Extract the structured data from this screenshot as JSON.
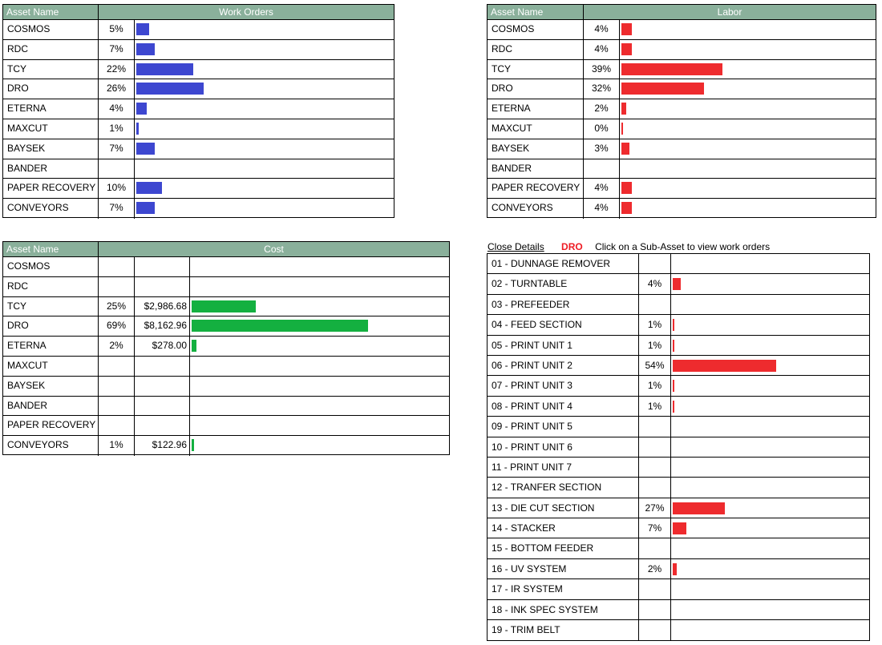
{
  "colors": {
    "header_bg": "#8ab09b",
    "work_orders_bar": "#3d47d0",
    "labor_bar": "#ee2b2e",
    "cost_bar": "#14b040",
    "asset_code": "#ee1c24"
  },
  "work_orders": {
    "header_name": "Asset Name",
    "header_metric": "Work Orders",
    "rows": [
      {
        "name": "COSMOS",
        "pct": "5%",
        "fraction": 0.05
      },
      {
        "name": "RDC",
        "pct": "7%",
        "fraction": 0.07
      },
      {
        "name": "TCY",
        "pct": "22%",
        "fraction": 0.22
      },
      {
        "name": "DRO",
        "pct": "26%",
        "fraction": 0.26
      },
      {
        "name": "ETERNA",
        "pct": "4%",
        "fraction": 0.04
      },
      {
        "name": "MAXCUT",
        "pct": "1%",
        "fraction": 0.01
      },
      {
        "name": "BAYSEK",
        "pct": "7%",
        "fraction": 0.07
      },
      {
        "name": "BANDER",
        "pct": "",
        "fraction": 0
      },
      {
        "name": "PAPER RECOVERY",
        "pct": "10%",
        "fraction": 0.1
      },
      {
        "name": "CONVEYORS",
        "pct": "7%",
        "fraction": 0.07
      }
    ]
  },
  "labor": {
    "header_name": "Asset Name",
    "header_metric": "Labor",
    "rows": [
      {
        "name": "COSMOS",
        "pct": "4%",
        "fraction": 0.04
      },
      {
        "name": "RDC",
        "pct": "4%",
        "fraction": 0.04
      },
      {
        "name": "TCY",
        "pct": "39%",
        "fraction": 0.39
      },
      {
        "name": "DRO",
        "pct": "32%",
        "fraction": 0.32
      },
      {
        "name": "ETERNA",
        "pct": "2%",
        "fraction": 0.02
      },
      {
        "name": "MAXCUT",
        "pct": "0%",
        "fraction": 0.003
      },
      {
        "name": "BAYSEK",
        "pct": "3%",
        "fraction": 0.03
      },
      {
        "name": "BANDER",
        "pct": "",
        "fraction": 0
      },
      {
        "name": "PAPER RECOVERY",
        "pct": "4%",
        "fraction": 0.04
      },
      {
        "name": "CONVEYORS",
        "pct": "4%",
        "fraction": 0.04
      }
    ]
  },
  "cost": {
    "header_name": "Asset Name",
    "header_metric": "Cost",
    "rows": [
      {
        "name": "COSMOS",
        "pct": "",
        "amount": "",
        "fraction": 0
      },
      {
        "name": "RDC",
        "pct": "",
        "amount": "",
        "fraction": 0
      },
      {
        "name": "TCY",
        "pct": "25%",
        "amount": "$2,986.68",
        "fraction": 0.25
      },
      {
        "name": "DRO",
        "pct": "69%",
        "amount": "$8,162.96",
        "fraction": 0.69
      },
      {
        "name": "ETERNA",
        "pct": "2%",
        "amount": "$278.00",
        "fraction": 0.02
      },
      {
        "name": "MAXCUT",
        "pct": "",
        "amount": "",
        "fraction": 0
      },
      {
        "name": "BAYSEK",
        "pct": "",
        "amount": "",
        "fraction": 0
      },
      {
        "name": "BANDER",
        "pct": "",
        "amount": "",
        "fraction": 0
      },
      {
        "name": "PAPER RECOVERY",
        "pct": "",
        "amount": "",
        "fraction": 0
      },
      {
        "name": "CONVEYORS",
        "pct": "1%",
        "amount": "$122.96",
        "fraction": 0.01
      }
    ]
  },
  "details": {
    "close_label": "Close Details",
    "asset_code": "DRO",
    "message": "Click on a Sub-Asset to view work orders",
    "rows": [
      {
        "name": "01 - DUNNAGE REMOVER",
        "pct": "",
        "fraction": 0
      },
      {
        "name": "02 - TURNTABLE",
        "pct": "4%",
        "fraction": 0.04
      },
      {
        "name": "03 - PREFEEDER",
        "pct": "",
        "fraction": 0
      },
      {
        "name": "04 - FEED SECTION",
        "pct": "1%",
        "fraction": 0.01
      },
      {
        "name": "05 - PRINT UNIT 1",
        "pct": "1%",
        "fraction": 0.01
      },
      {
        "name": "06 - PRINT UNIT 2",
        "pct": "54%",
        "fraction": 0.54
      },
      {
        "name": "07 - PRINT UNIT 3",
        "pct": "1%",
        "fraction": 0.01
      },
      {
        "name": "08 - PRINT UNIT 4",
        "pct": "1%",
        "fraction": 0.01
      },
      {
        "name": "09 - PRINT UNIT 5",
        "pct": "",
        "fraction": 0
      },
      {
        "name": "10 - PRINT UNIT 6",
        "pct": "",
        "fraction": 0
      },
      {
        "name": "11 - PRINT UNIT 7",
        "pct": "",
        "fraction": 0
      },
      {
        "name": "12 - TRANFER SECTION",
        "pct": "",
        "fraction": 0
      },
      {
        "name": "13 - DIE CUT SECTION",
        "pct": "27%",
        "fraction": 0.27
      },
      {
        "name": "14 - STACKER",
        "pct": "7%",
        "fraction": 0.07
      },
      {
        "name": "15 - BOTTOM FEEDER",
        "pct": "",
        "fraction": 0
      },
      {
        "name": "16 - UV SYSTEM",
        "pct": "2%",
        "fraction": 0.02
      },
      {
        "name": "17 - IR SYSTEM",
        "pct": "",
        "fraction": 0
      },
      {
        "name": "18 - INK SPEC SYSTEM",
        "pct": "",
        "fraction": 0
      },
      {
        "name": "19 - TRIM BELT",
        "pct": "",
        "fraction": 0
      }
    ]
  }
}
